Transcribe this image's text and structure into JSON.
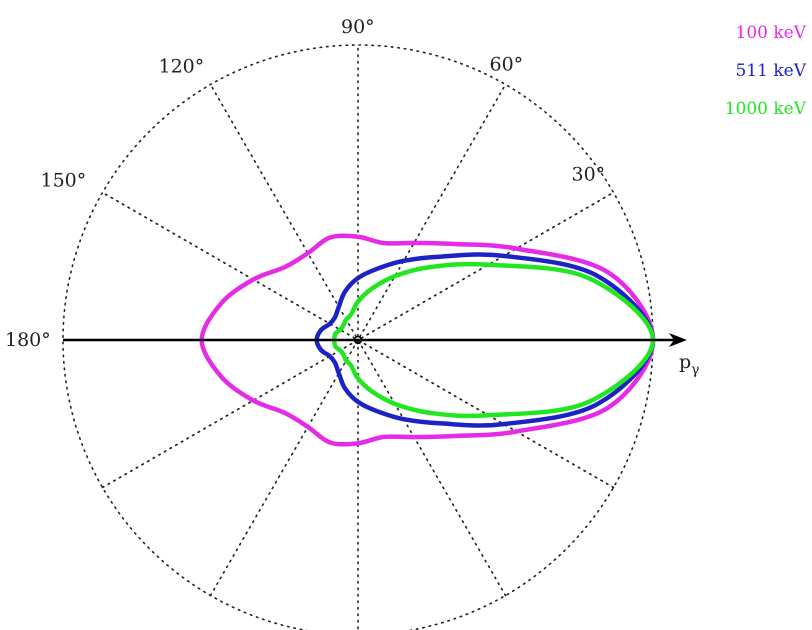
{
  "chart_data": {
    "type": "polar",
    "angle_ticks": [
      "30°",
      "60°",
      "90°",
      "120°",
      "150°",
      "180°"
    ],
    "angle_values_deg": [
      30,
      60,
      90,
      120,
      150,
      180
    ],
    "radial_axis_label": "p",
    "radial_axis_label_sub": "γ",
    "grid": true,
    "legend_position": "top-right",
    "theta_deg": [
      0,
      15,
      30,
      45,
      60,
      75,
      90,
      105,
      120,
      135,
      150,
      165,
      180
    ],
    "series": [
      {
        "name": "100 keV",
        "color": "#e62be6",
        "r": [
          1.0,
          0.88,
          0.62,
          0.46,
          0.38,
          0.34,
          0.35,
          0.36,
          0.34,
          0.35,
          0.41,
          0.48,
          0.53
        ]
      },
      {
        "name": "511 keV",
        "color": "#1c22c4",
        "r": [
          1.0,
          0.84,
          0.57,
          0.4,
          0.31,
          0.25,
          0.21,
          0.17,
          0.13,
          0.11,
          0.11,
          0.13,
          0.14
        ]
      },
      {
        "name": "1000 keV",
        "color": "#22e622",
        "r": [
          1.0,
          0.81,
          0.51,
          0.35,
          0.25,
          0.18,
          0.13,
          0.09,
          0.08,
          0.07,
          0.07,
          0.08,
          0.08
        ]
      }
    ]
  }
}
